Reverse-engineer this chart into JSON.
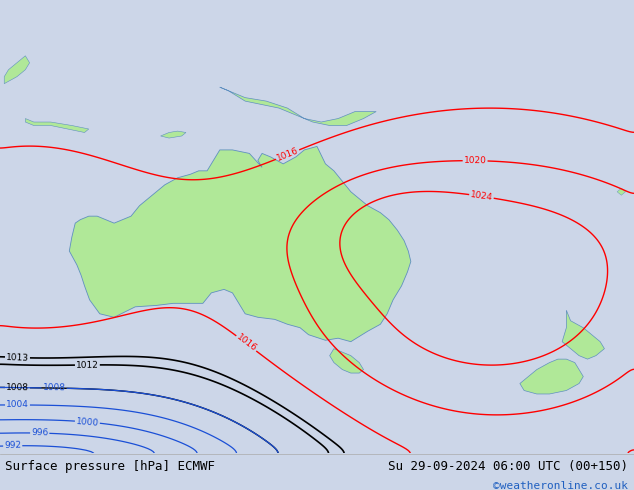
{
  "title_left": "Surface pressure [hPa] ECMWF",
  "title_right": "Su 29-09-2024 06:00 UTC (00+150)",
  "credit": "©weatheronline.co.uk",
  "bg_color": "#ccd6e8",
  "land_color": "#b0e898",
  "land_border_color": "#6090c0",
  "fig_width": 6.34,
  "fig_height": 4.9,
  "dpi": 100,
  "bottom_bar_color": "#e0e0e0",
  "title_fontsize": 9.0,
  "credit_color": "#2060c0",
  "credit_fontsize": 8,
  "lon_min": 105,
  "lon_max": 180,
  "lat_min": -55,
  "lat_max": 10
}
